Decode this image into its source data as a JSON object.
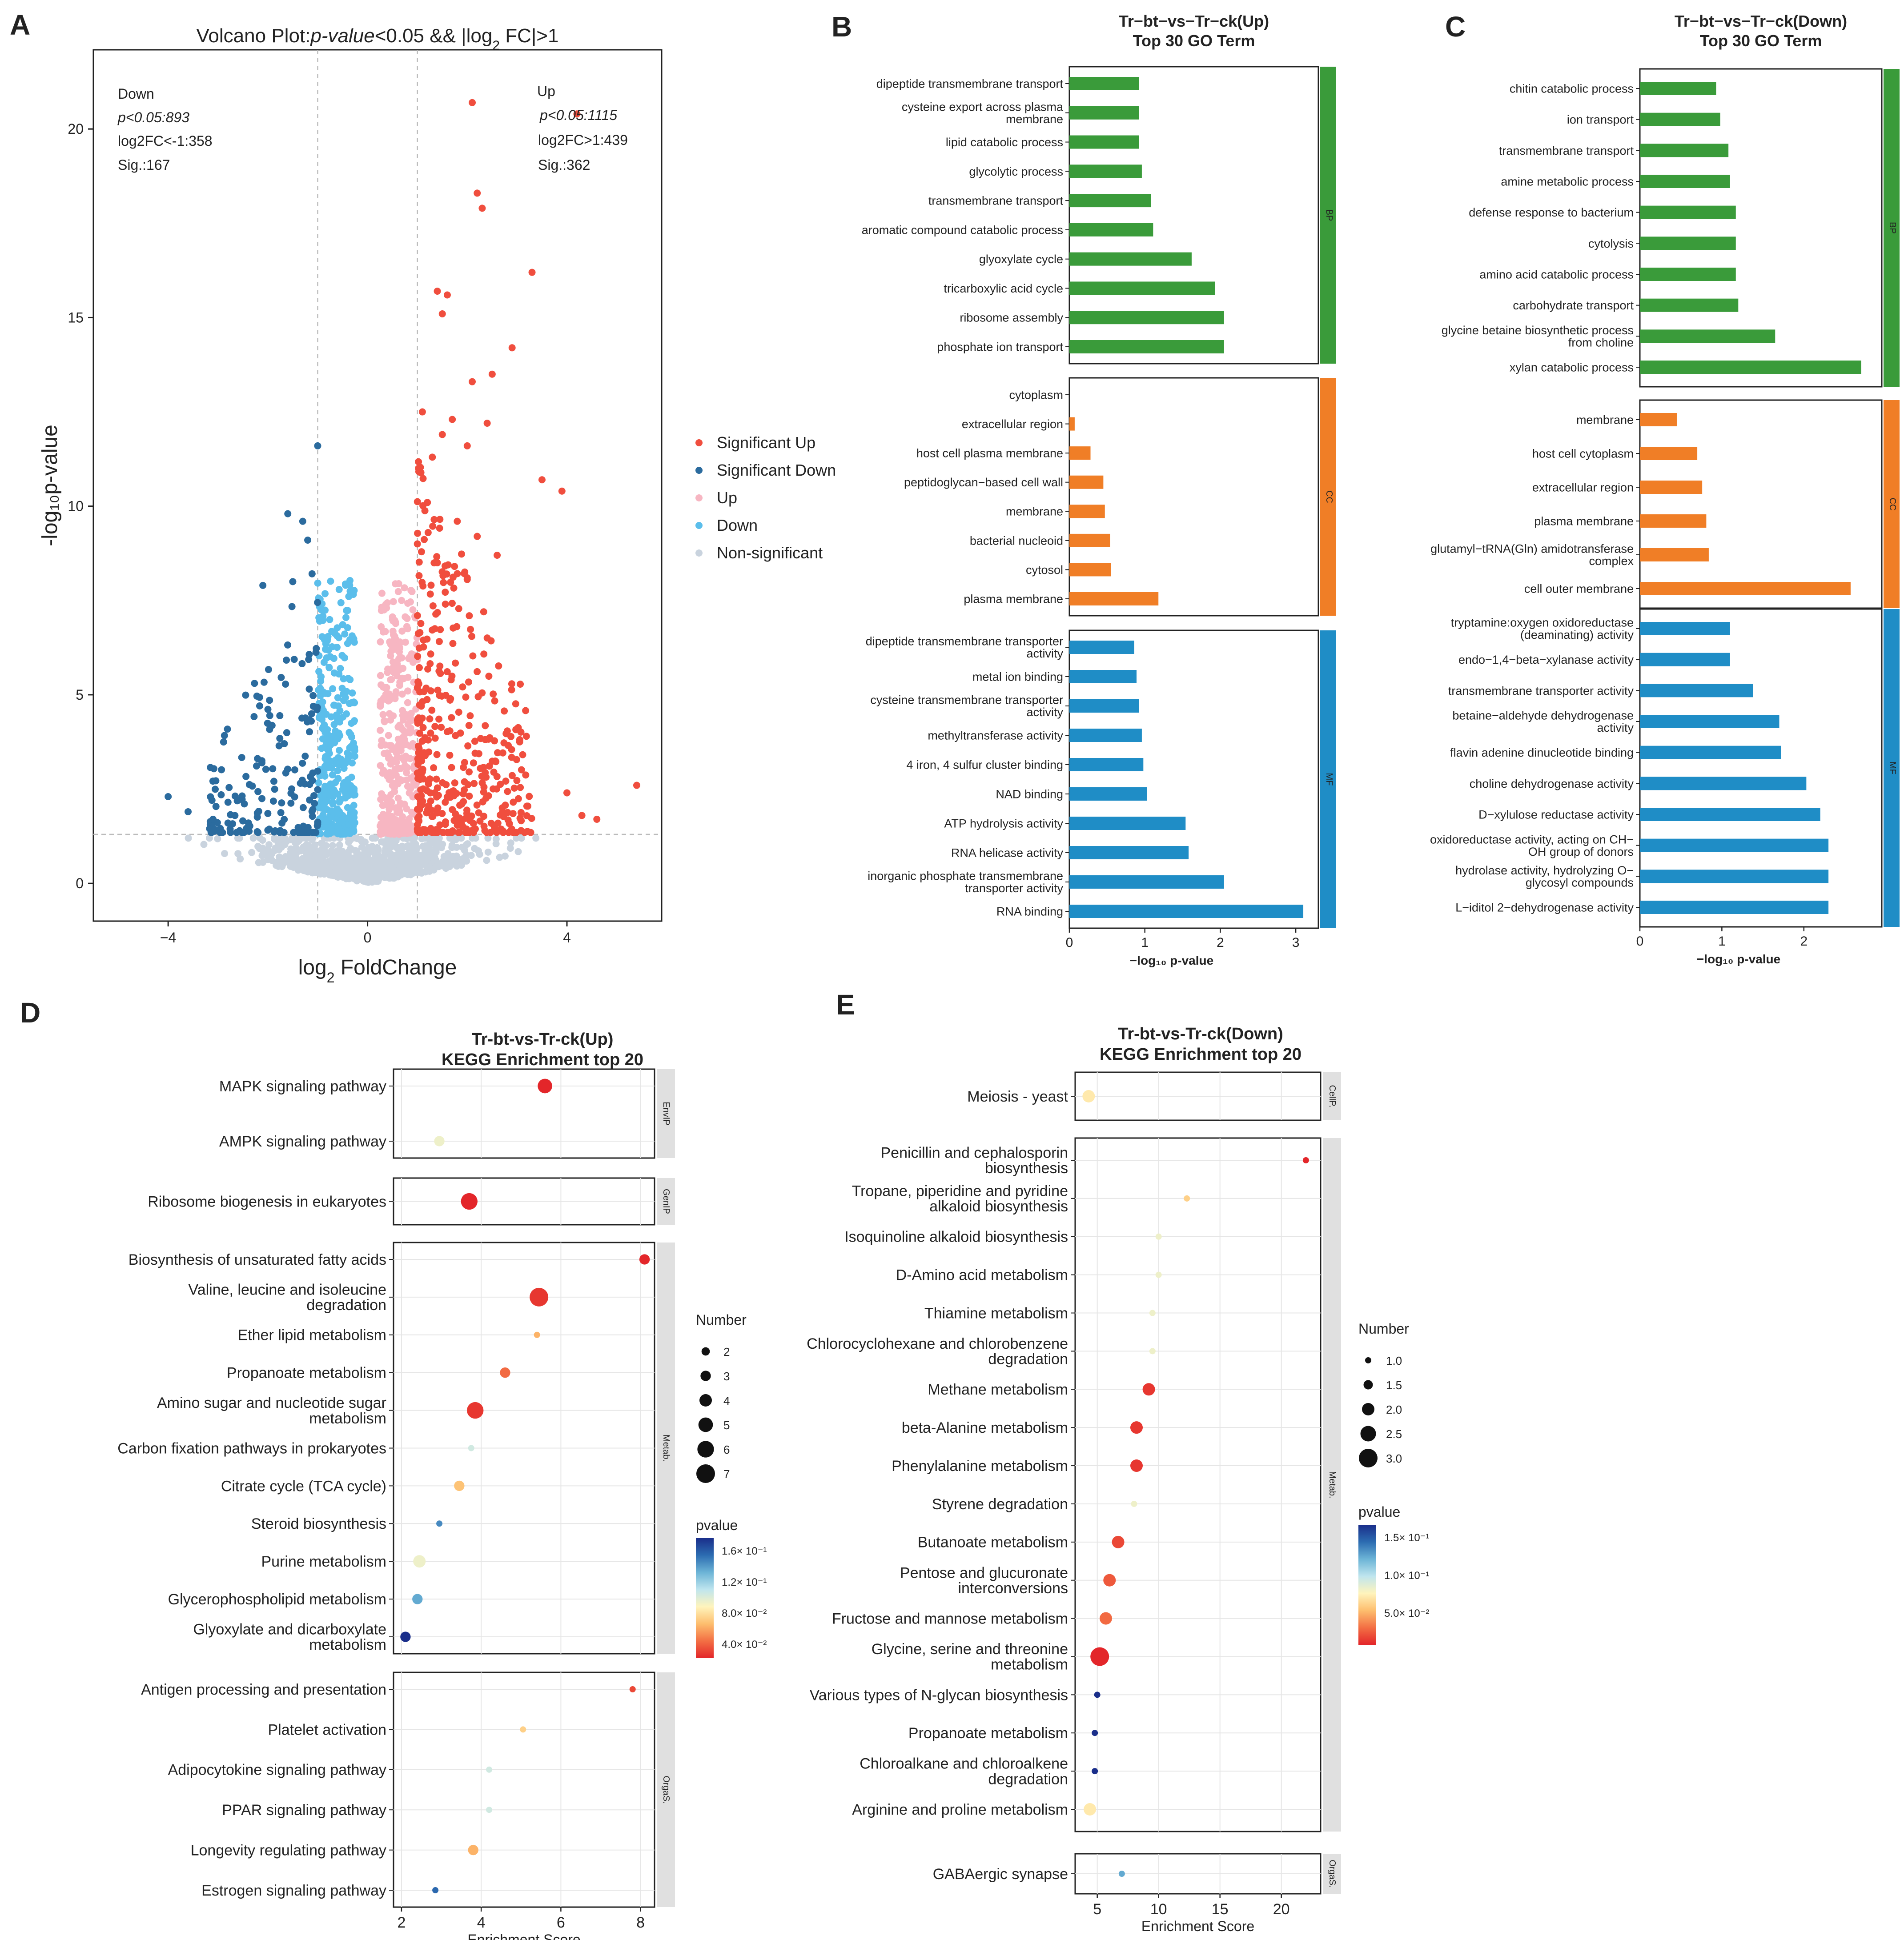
{
  "panel_labels": [
    "A",
    "B",
    "C",
    "D",
    "E"
  ],
  "chart_data": [
    {
      "id": "A",
      "type": "scatter",
      "title_parts": [
        "Volcano Plot:",
        "p-value",
        "<0.05 && |log",
        "2",
        " FC|>1"
      ],
      "xlabel_parts": [
        "log",
        "2",
        " FoldChange"
      ],
      "ylabel": "-log₁₀p-value",
      "xlim": [
        -5.5,
        5.9
      ],
      "ylim": [
        -1.0,
        22.1
      ],
      "xticks": [
        -4,
        0,
        4
      ],
      "yticks": [
        0,
        5,
        10,
        15,
        20
      ],
      "vlines": [
        -1,
        1
      ],
      "hline": 1.3,
      "annot_down": [
        "Down",
        "p<0.05:893",
        "log2FC<-1:358",
        "Sig.:167"
      ],
      "annot_up": [
        "Up",
        "p<0.05:1115",
        "log2FC>1:439",
        "Sig.:362"
      ],
      "legend": [
        {
          "label": "Significant Up",
          "color": "#F04E3E"
        },
        {
          "label": "Significant Down",
          "color": "#2B6B9E"
        },
        {
          "label": "Up",
          "color": "#F7B6C2"
        },
        {
          "label": "Down",
          "color": "#5BBEEB"
        },
        {
          "label": "Non-significant",
          "color": "#C9D3DE"
        }
      ],
      "highlight_points": [
        [
          2.1,
          20.7
        ],
        [
          4.2,
          20.4
        ],
        [
          2.2,
          18.3
        ],
        [
          2.3,
          17.9
        ],
        [
          3.3,
          16.2
        ],
        [
          1.4,
          15.7
        ],
        [
          1.6,
          15.6
        ],
        [
          1.5,
          15.1
        ],
        [
          2.9,
          14.2
        ],
        [
          2.5,
          13.5
        ],
        [
          2.1,
          13.3
        ],
        [
          1.1,
          12.5
        ],
        [
          1.7,
          12.3
        ],
        [
          2.4,
          12.2
        ],
        [
          1.5,
          11.9
        ],
        [
          2.0,
          11.6
        ],
        [
          1.3,
          11.3
        ],
        [
          3.5,
          10.7
        ],
        [
          3.9,
          10.4
        ],
        [
          1.2,
          10.1
        ],
        [
          1.8,
          9.6
        ],
        [
          2.2,
          9.2
        ],
        [
          1.0,
          9.0
        ],
        [
          2.6,
          8.7
        ],
        [
          1.4,
          8.5
        ],
        [
          2.0,
          8.1
        ],
        [
          -1.6,
          9.8
        ],
        [
          -1.3,
          9.6
        ],
        [
          -1.2,
          9.1
        ],
        [
          -2.1,
          7.9
        ],
        [
          -1.5,
          8.0
        ],
        [
          -1.0,
          11.6
        ],
        [
          -4.0,
          2.3
        ],
        [
          -3.6,
          1.9
        ],
        [
          -3.1,
          1.7
        ],
        [
          -2.8,
          1.6
        ],
        [
          -2.6,
          2.2
        ],
        [
          4.0,
          2.4
        ],
        [
          4.3,
          1.8
        ],
        [
          4.6,
          1.7
        ],
        [
          5.4,
          2.6
        ]
      ],
      "seed": 7
    },
    {
      "id": "B",
      "type": "bar",
      "orientation": "horizontal",
      "title": [
        "Tr−bt−vs−Tr−ck(Up)",
        "Top 30 GO Term"
      ],
      "xlabel": "−log₁₀ p-value",
      "xlim": [
        0,
        3.3
      ],
      "xticks": [
        0,
        1,
        2,
        3
      ],
      "groups": [
        {
          "name": "BP",
          "color": "#3A9B3A",
          "categories": [
            [
              "dipeptide transmembrane transport"
            ],
            [
              "cysteine export across plasma",
              "membrane"
            ],
            [
              "lipid catabolic process"
            ],
            [
              "glycolytic process"
            ],
            [
              "transmembrane transport"
            ],
            [
              "aromatic compound catabolic process"
            ],
            [
              "glyoxylate cycle"
            ],
            [
              "tricarboxylic acid cycle"
            ],
            [
              "ribosome assembly"
            ],
            [
              "phosphate ion transport"
            ]
          ],
          "values": [
            0.92,
            0.92,
            0.92,
            0.96,
            1.08,
            1.11,
            1.62,
            1.93,
            2.05,
            2.05
          ]
        },
        {
          "name": "CC",
          "color": "#F07E26",
          "categories": [
            [
              "cytoplasm"
            ],
            [
              "extracellular region"
            ],
            [
              "host cell plasma membrane"
            ],
            [
              "peptidoglycan−based cell wall"
            ],
            [
              "membrane"
            ],
            [
              "bacterial nucleoid"
            ],
            [
              "cytosol"
            ],
            [
              "plasma membrane"
            ]
          ],
          "values": [
            0.0,
            0.07,
            0.28,
            0.45,
            0.47,
            0.54,
            0.55,
            1.18
          ]
        },
        {
          "name": "MF",
          "color": "#1F8DC6",
          "categories": [
            [
              "dipeptide transmembrane transporter",
              "activity"
            ],
            [
              "metal ion binding"
            ],
            [
              "cysteine transmembrane transporter",
              "activity"
            ],
            [
              "methyltransferase activity"
            ],
            [
              "4 iron, 4 sulfur cluster binding"
            ],
            [
              "NAD binding"
            ],
            [
              "ATP hydrolysis activity"
            ],
            [
              "RNA helicase activity"
            ],
            [
              "inorganic phosphate transmembrane",
              "transporter activity"
            ],
            [
              "RNA binding"
            ]
          ],
          "values": [
            0.86,
            0.89,
            0.92,
            0.96,
            0.98,
            1.03,
            1.54,
            1.58,
            2.05,
            3.1
          ]
        }
      ]
    },
    {
      "id": "C",
      "type": "bar",
      "orientation": "horizontal",
      "title": [
        "Tr−bt−vs−Tr−ck(Down)",
        "Top 30 GO Term"
      ],
      "xlabel": "−log₁₀ p-value",
      "xlim": [
        0,
        2.95
      ],
      "xticks": [
        0,
        1,
        2
      ],
      "groups": [
        {
          "name": "BP",
          "color": "#3A9B3A",
          "categories": [
            [
              "chitin catabolic process"
            ],
            [
              "ion transport"
            ],
            [
              "transmembrane transport"
            ],
            [
              "amine metabolic process"
            ],
            [
              "defense response to bacterium"
            ],
            [
              "cytolysis"
            ],
            [
              "amino acid catabolic process"
            ],
            [
              "carbohydrate transport"
            ],
            [
              "glycine betaine biosynthetic process",
              "from choline"
            ],
            [
              "xylan catabolic process"
            ]
          ],
          "values": [
            0.93,
            0.98,
            1.08,
            1.1,
            1.17,
            1.17,
            1.17,
            1.2,
            1.65,
            2.7
          ]
        },
        {
          "name": "CC",
          "color": "#F07E26",
          "categories": [
            [
              "membrane"
            ],
            [
              "host cell cytoplasm"
            ],
            [
              "extracellular region"
            ],
            [
              "plasma membrane"
            ],
            [
              "glutamyl−tRNA(Gln) amidotransferase",
              "complex"
            ],
            [
              "cell outer membrane"
            ]
          ],
          "values": [
            0.45,
            0.7,
            0.76,
            0.81,
            0.84,
            2.57
          ]
        },
        {
          "name": "MF",
          "color": "#1F8DC6",
          "categories": [
            [
              "tryptamine:oxygen oxidoreductase",
              "(deaminating) activity"
            ],
            [
              "endo−1,4−beta−xylanase activity"
            ],
            [
              "transmembrane transporter activity"
            ],
            [
              "betaine−aldehyde dehydrogenase",
              "activity"
            ],
            [
              "flavin adenine dinucleotide binding"
            ],
            [
              "choline dehydrogenase activity"
            ],
            [
              "D−xylulose reductase activity"
            ],
            [
              "oxidoreductase activity, acting on CH−",
              "OH group of donors"
            ],
            [
              "hydrolase activity, hydrolyzing O−",
              "glycosyl compounds"
            ],
            [
              "L−iditol 2−dehydrogenase activity"
            ]
          ],
          "values": [
            1.1,
            1.1,
            1.38,
            1.7,
            1.72,
            2.03,
            2.2,
            2.3,
            2.3,
            2.3
          ]
        }
      ]
    },
    {
      "id": "D",
      "type": "scatter",
      "subtype": "bubble",
      "title": [
        "Tr-bt-vs-Tr-ck(Up)",
        "KEGG Enrichment top 20"
      ],
      "xlabel": "Enrichment Score",
      "xlim": [
        1.8,
        8.35
      ],
      "xticks": [
        2,
        4,
        6,
        8
      ],
      "size_legend_title": "Number",
      "size_legend": [
        2,
        3,
        4,
        5,
        6,
        7
      ],
      "size_range": [
        1,
        7
      ],
      "color_legend_title": "pvalue",
      "color_ticks": [
        "1.6× 10⁻¹",
        "1.2× 10⁻¹",
        "8.0× 10⁻²",
        "4.0× 10⁻²"
      ],
      "pvalue_range": [
        0.02,
        0.17
      ],
      "groups": [
        {
          "name": "EnvIP",
          "rows": [
            {
              "label": [
                "MAPK signaling pathway"
              ],
              "x": 5.6,
              "n": 5,
              "p": 0.02
            },
            {
              "label": [
                "AMPK signaling pathway"
              ],
              "x": 2.95,
              "n": 3,
              "p": 0.09
            }
          ]
        },
        {
          "name": "GenIP",
          "rows": [
            {
              "label": [
                "Ribosome biogenesis in eukaryotes"
              ],
              "x": 3.7,
              "n": 6,
              "p": 0.02
            }
          ]
        },
        {
          "name": "Metab.",
          "rows": [
            {
              "label": [
                "Biosynthesis of unsaturated fatty acids"
              ],
              "x": 8.1,
              "n": 3,
              "p": 0.015
            },
            {
              "label": [
                "Valine, leucine and isoleucine",
                "degradation"
              ],
              "x": 5.45,
              "n": 7,
              "p": 0.025
            },
            {
              "label": [
                "Ether lipid metabolism"
              ],
              "x": 5.4,
              "n": 1,
              "p": 0.06
            },
            {
              "label": [
                "Propanoate metabolism"
              ],
              "x": 4.6,
              "n": 3,
              "p": 0.04
            },
            {
              "label": [
                "Amino sugar and nucleotide sugar",
                "metabolism"
              ],
              "x": 3.85,
              "n": 6,
              "p": 0.025
            },
            {
              "label": [
                "Carbon fixation pathways in prokaryotes"
              ],
              "x": 3.75,
              "n": 1,
              "p": 0.1
            },
            {
              "label": [
                "Citrate cycle (TCA cycle)"
              ],
              "x": 3.45,
              "n": 3,
              "p": 0.065
            },
            {
              "label": [
                "Steroid biosynthesis"
              ],
              "x": 2.95,
              "n": 1,
              "p": 0.14
            },
            {
              "label": [
                "Purine metabolism"
              ],
              "x": 2.45,
              "n": 4,
              "p": 0.09
            },
            {
              "label": [
                "Glycerophospholipid metabolism"
              ],
              "x": 2.4,
              "n": 3,
              "p": 0.13
            },
            {
              "label": [
                "Glyoxylate and dicarboxylate",
                "metabolism"
              ],
              "x": 2.1,
              "n": 3,
              "p": 0.17
            }
          ]
        },
        {
          "name": "OrgaS.",
          "rows": [
            {
              "label": [
                "Antigen processing and presentation"
              ],
              "x": 7.8,
              "n": 1,
              "p": 0.03
            },
            {
              "label": [
                "Platelet activation"
              ],
              "x": 5.05,
              "n": 1,
              "p": 0.07
            },
            {
              "label": [
                "Adipocytokine signaling pathway"
              ],
              "x": 4.2,
              "n": 1,
              "p": 0.1
            },
            {
              "label": [
                "PPAR signaling pathway"
              ],
              "x": 4.2,
              "n": 1,
              "p": 0.1
            },
            {
              "label": [
                "Longevity regulating pathway"
              ],
              "x": 3.8,
              "n": 3,
              "p": 0.06
            },
            {
              "label": [
                "Estrogen signaling pathway"
              ],
              "x": 2.85,
              "n": 1,
              "p": 0.15
            }
          ]
        }
      ]
    },
    {
      "id": "E",
      "type": "scatter",
      "subtype": "bubble",
      "title": [
        "Tr-bt-vs-Tr-ck(Down)",
        "KEGG Enrichment top 20"
      ],
      "xlabel": "Enrichment Score",
      "xlim": [
        3.2,
        23.2
      ],
      "xticks": [
        5,
        10,
        15,
        20
      ],
      "size_legend_title": "Number",
      "size_legend": [
        1.0,
        1.5,
        2.0,
        2.5,
        3.0
      ],
      "size_range": [
        1,
        3
      ],
      "color_legend_title": "pvalue",
      "color_ticks": [
        "1.5× 10⁻¹",
        "1.0× 10⁻¹",
        "5.0× 10⁻²"
      ],
      "pvalue_range": [
        0.03,
        0.18
      ],
      "groups": [
        {
          "name": "CellP.",
          "rows": [
            {
              "label": [
                "Meiosis - yeast"
              ],
              "x": 4.3,
              "n": 2,
              "p": 0.09
            }
          ]
        },
        {
          "name": "Metab.",
          "rows": [
            {
              "label": [
                "Penicillin and cephalosporin",
                "biosynthesis"
              ],
              "x": 22.0,
              "n": 1,
              "p": 0.03
            },
            {
              "label": [
                "Tropane, piperidine and pyridine",
                "alkaloid biosynthesis"
              ],
              "x": 12.3,
              "n": 1,
              "p": 0.08
            },
            {
              "label": [
                "Isoquinoline alkaloid biosynthesis"
              ],
              "x": 10.0,
              "n": 1,
              "p": 0.1
            },
            {
              "label": [
                "D-Amino acid metabolism"
              ],
              "x": 10.0,
              "n": 1,
              "p": 0.1
            },
            {
              "label": [
                "Thiamine metabolism"
              ],
              "x": 9.5,
              "n": 1,
              "p": 0.1
            },
            {
              "label": [
                "Chlorocyclohexane and chlorobenzene",
                "degradation"
              ],
              "x": 9.5,
              "n": 1,
              "p": 0.1
            },
            {
              "label": [
                "Methane metabolism"
              ],
              "x": 9.2,
              "n": 2,
              "p": 0.035
            },
            {
              "label": [
                "beta-Alanine metabolism"
              ],
              "x": 8.2,
              "n": 2,
              "p": 0.035
            },
            {
              "label": [
                "Phenylalanine metabolism"
              ],
              "x": 8.2,
              "n": 2,
              "p": 0.035
            },
            {
              "label": [
                "Styrene degradation"
              ],
              "x": 8.0,
              "n": 1,
              "p": 0.1
            },
            {
              "label": [
                "Butanoate metabolism"
              ],
              "x": 6.7,
              "n": 2,
              "p": 0.04
            },
            {
              "label": [
                "Pentose and glucuronate",
                "interconversions"
              ],
              "x": 6.0,
              "n": 2,
              "p": 0.045
            },
            {
              "label": [
                "Fructose and mannose metabolism"
              ],
              "x": 5.7,
              "n": 2,
              "p": 0.05
            },
            {
              "label": [
                "Glycine, serine and threonine",
                "metabolism"
              ],
              "x": 5.2,
              "n": 3,
              "p": 0.03
            },
            {
              "label": [
                "Various types of N-glycan biosynthesis"
              ],
              "x": 5.0,
              "n": 1,
              "p": 0.18
            },
            {
              "label": [
                "Propanoate metabolism"
              ],
              "x": 4.8,
              "n": 1,
              "p": 0.18
            },
            {
              "label": [
                "Chloroalkane and chloroalkene",
                "degradation"
              ],
              "x": 4.8,
              "n": 1,
              "p": 0.18
            },
            {
              "label": [
                "Arginine and proline metabolism"
              ],
              "x": 4.4,
              "n": 2,
              "p": 0.09
            }
          ]
        },
        {
          "name": "OrgaS.",
          "rows": [
            {
              "label": [
                "GABAergic synapse"
              ],
              "x": 7.0,
              "n": 1,
              "p": 0.14
            }
          ]
        }
      ]
    }
  ]
}
